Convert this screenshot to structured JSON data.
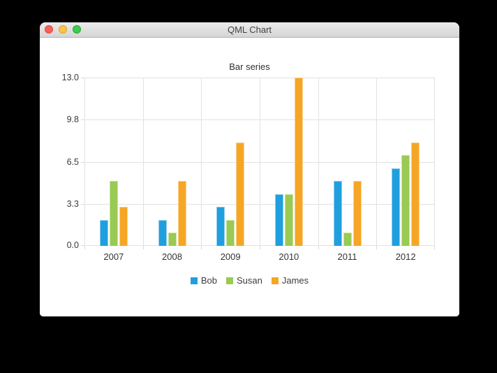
{
  "window": {
    "title": "QML Chart",
    "controls": {
      "close_label": "close",
      "minimize_label": "minimize",
      "zoom_label": "zoom"
    }
  },
  "chart_data": {
    "type": "bar",
    "title": "Bar series",
    "categories": [
      "2007",
      "2008",
      "2009",
      "2010",
      "2011",
      "2012"
    ],
    "series": [
      {
        "name": "Bob",
        "color": "#209fdf",
        "border_color": "#8ecdee",
        "values": [
          2,
          2,
          3,
          4,
          5,
          6
        ]
      },
      {
        "name": "Susan",
        "color": "#99ca53",
        "border_color": "#c7e3a2",
        "values": [
          5,
          1,
          2,
          4,
          1,
          7
        ]
      },
      {
        "name": "James",
        "color": "#f6a625",
        "border_color": "#fbd28f",
        "values": [
          3,
          5,
          8,
          13,
          5,
          8
        ]
      }
    ],
    "xlabel": "",
    "ylabel": "",
    "ylim": [
      0,
      13
    ],
    "yticks": [
      "0.0",
      "3.3",
      "6.5",
      "9.8",
      "13.0"
    ],
    "grid": true,
    "legend_position": "bottom"
  },
  "colors": {
    "accent_blue": "#209fdf",
    "accent_green": "#99ca53",
    "accent_orange": "#f6a625",
    "traffic_close": "#f4625b",
    "traffic_minimize": "#f7c54f",
    "traffic_zoom": "#3fc953",
    "grid_line": "#e2e2e2"
  }
}
